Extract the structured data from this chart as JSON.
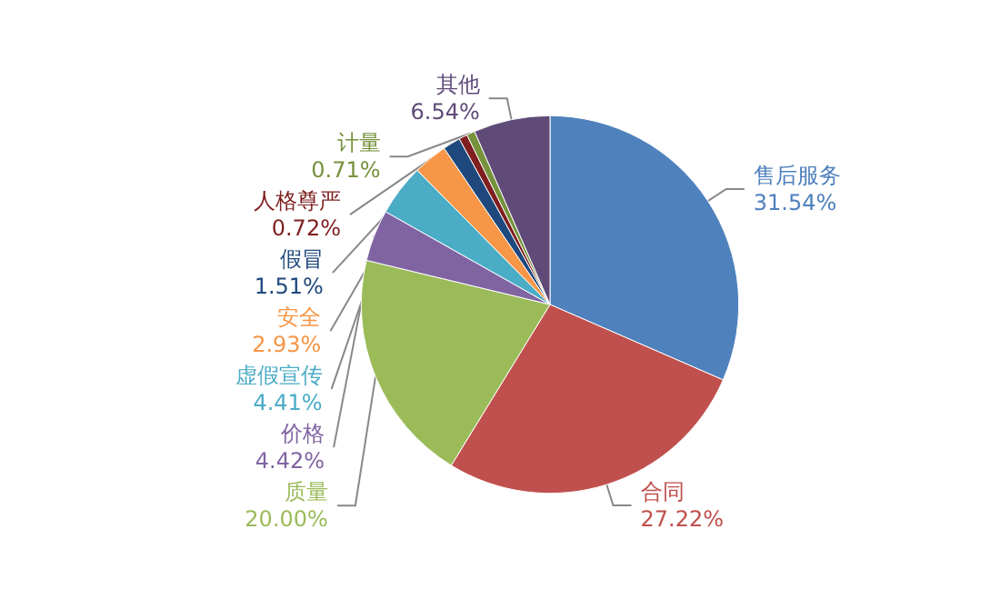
{
  "chart_data": {
    "type": "pie",
    "categories": [
      "售后服务",
      "合同",
      "质量",
      "价格",
      "虚假宣传",
      "安全",
      "假冒",
      "人格尊严",
      "计量",
      "其他"
    ],
    "values": [
      31.54,
      27.22,
      20.0,
      4.42,
      4.41,
      2.93,
      1.51,
      0.72,
      0.71,
      6.54
    ],
    "value_labels": [
      "31.54%",
      "27.22%",
      "20.00%",
      "4.42%",
      "4.41%",
      "2.93%",
      "1.51%",
      "0.72%",
      "0.71%",
      "6.54%"
    ],
    "colors": [
      "#4f81bd",
      "#c0504d",
      "#9bbb59",
      "#8064a2",
      "#4bacc6",
      "#f79646",
      "#1f497d",
      "#7f1f1f",
      "#76923c",
      "#5f4a78"
    ],
    "legend": false
  }
}
